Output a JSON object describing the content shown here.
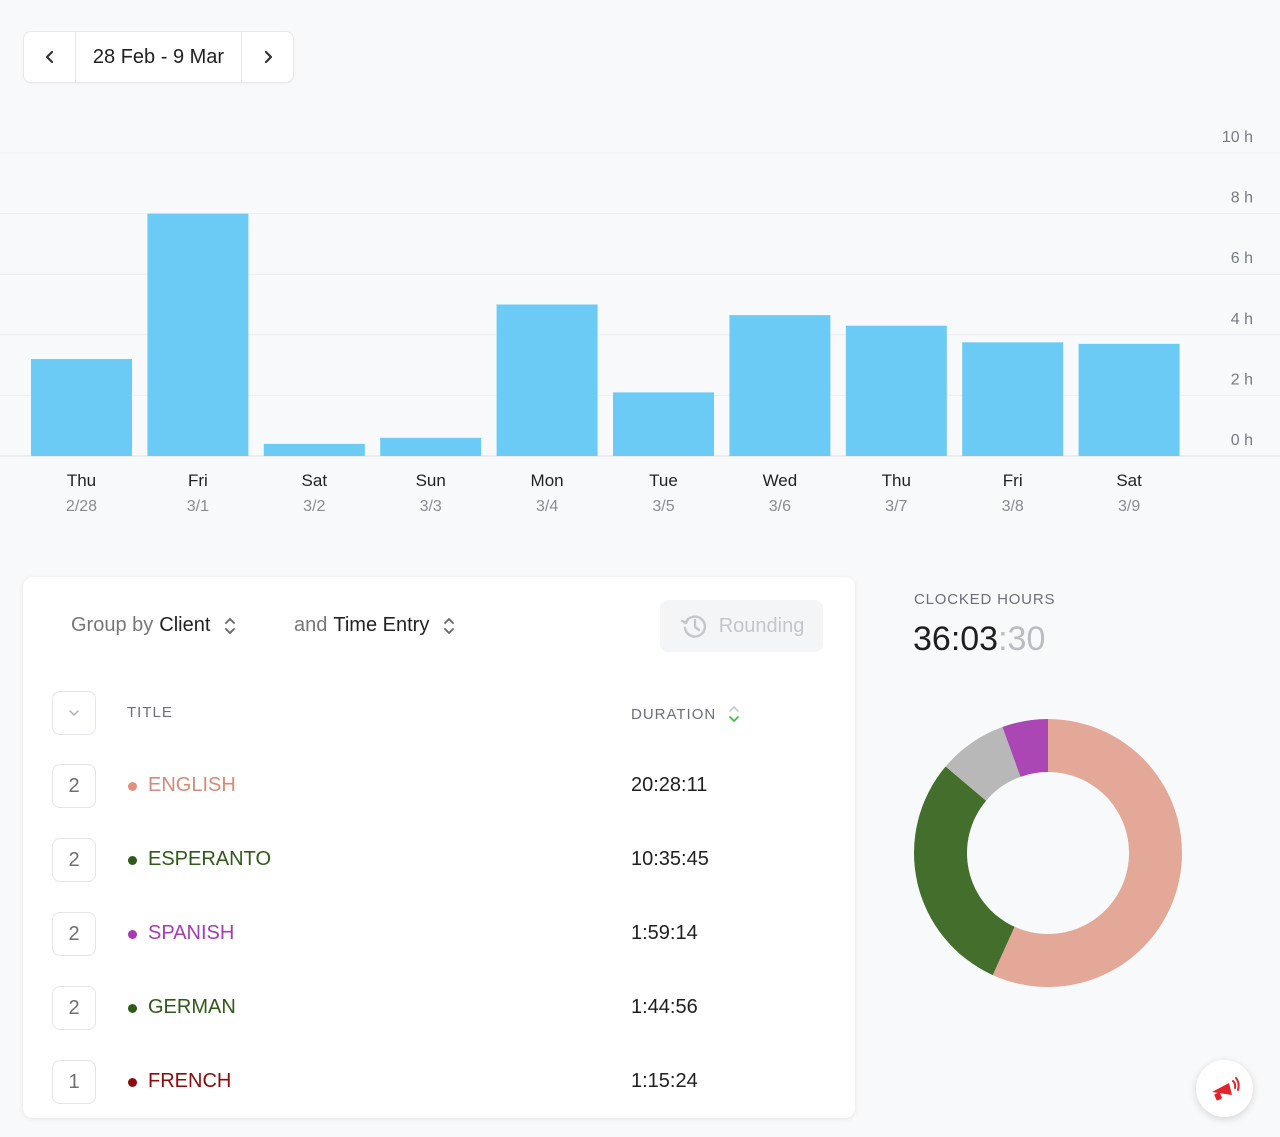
{
  "date_range": {
    "label": "28 Feb - 9 Mar",
    "prev_icon": "chevron-left-icon",
    "next_icon": "chevron-right-icon"
  },
  "chart_data": {
    "type": "bar",
    "categories": [
      "Thu",
      "Fri",
      "Sat",
      "Sun",
      "Mon",
      "Tue",
      "Wed",
      "Thu",
      "Fri",
      "Sat"
    ],
    "dates": [
      "2/28",
      "3/1",
      "3/2",
      "3/3",
      "3/4",
      "3/5",
      "3/6",
      "3/7",
      "3/8",
      "3/9"
    ],
    "values": [
      3.2,
      8.0,
      0.4,
      0.6,
      5.0,
      2.1,
      4.65,
      4.3,
      3.75,
      3.7
    ],
    "yticks": [
      "0 h",
      "2 h",
      "4 h",
      "6 h",
      "8 h",
      "10 h"
    ],
    "ylim": [
      0,
      10
    ],
    "grid": true,
    "color": "#6ccbf5"
  },
  "table": {
    "group_by_prefix": "Group by",
    "group_by_value": "Client",
    "then_prefix": "and",
    "then_value": "Time Entry",
    "rounding_label": "Rounding",
    "col_title": "TITLE",
    "col_duration": "DURATION",
    "rows": [
      {
        "count": "2",
        "name": "ENGLISH",
        "duration": "20:28:11",
        "color": "#e0917c",
        "text_color": "#d78a76"
      },
      {
        "count": "2",
        "name": "ESPERANTO",
        "duration": "10:35:45",
        "color": "#2f5a17",
        "text_color": "#2f5a17"
      },
      {
        "count": "2",
        "name": "SPANISH",
        "duration": "1:59:14",
        "color": "#a63bb5",
        "text_color": "#a63bb5"
      },
      {
        "count": "2",
        "name": "GERMAN",
        "duration": "1:44:56",
        "color": "#2f5a17",
        "text_color": "#2f5a17"
      },
      {
        "count": "1",
        "name": "FRENCH",
        "duration": "1:15:24",
        "color": "#8b0b0b",
        "text_color": "#8b0b0b"
      }
    ]
  },
  "clocked": {
    "label": "CLOCKED HOURS",
    "main": "36:03",
    "seconds": ":30"
  },
  "donut_data": {
    "type": "pie",
    "slices": [
      {
        "value": 20.47,
        "color": "#e4a898"
      },
      {
        "value": 10.6,
        "color": "#446e2c"
      },
      {
        "value": 3.0,
        "color": "#b8b8b8"
      },
      {
        "value": 1.99,
        "color": "#ab47b5"
      }
    ]
  },
  "fab": {
    "icon": "feedback-megaphone-icon",
    "color": "#e0242b"
  }
}
